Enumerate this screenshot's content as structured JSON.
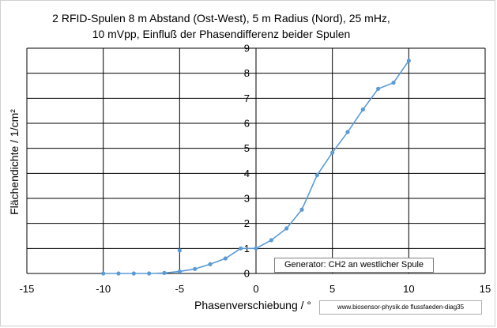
{
  "chart_data": {
    "type": "scatter",
    "title": [
      "2 RFID-Spulen 8 m Abstand (Ost-West), 5 m Radius (Nord),  25 mHz,",
      "10 mVpp, Einfluß der Phasendifferenz beider Spulen"
    ],
    "xlabel": "Phasenverschiebung  / °",
    "ylabel": "Flächendichte  / 1/cm²",
    "xlim": [
      -15,
      15
    ],
    "ylim": [
      0,
      9
    ],
    "xticks": [
      -15,
      -10,
      -5,
      0,
      5,
      10,
      15
    ],
    "yticks": [
      0,
      1,
      2,
      3,
      4,
      5,
      6,
      7,
      8,
      9
    ],
    "grid": true,
    "line_color": "#5b9bd5",
    "series": [
      {
        "x": [
          -10,
          -9,
          -8,
          -7,
          -6,
          -5,
          -4,
          -3,
          -2,
          -1,
          0,
          1,
          2,
          3,
          4,
          5,
          6,
          7,
          8,
          9,
          10
        ],
        "y": [
          0.0,
          0.0,
          0.0,
          0.0,
          0.02,
          0.08,
          0.18,
          0.37,
          0.6,
          1.0,
          1.0,
          1.33,
          1.8,
          2.55,
          3.93,
          4.83,
          5.65,
          6.55,
          7.38,
          7.62,
          8.5
        ]
      },
      {
        "x": [
          -5
        ],
        "y": [
          0.92
        ]
      }
    ],
    "annotation": "Generator: CH2 an westlicher Spule"
  },
  "footer": "www.biosensor-physik.de  flussfaeden-diag35"
}
